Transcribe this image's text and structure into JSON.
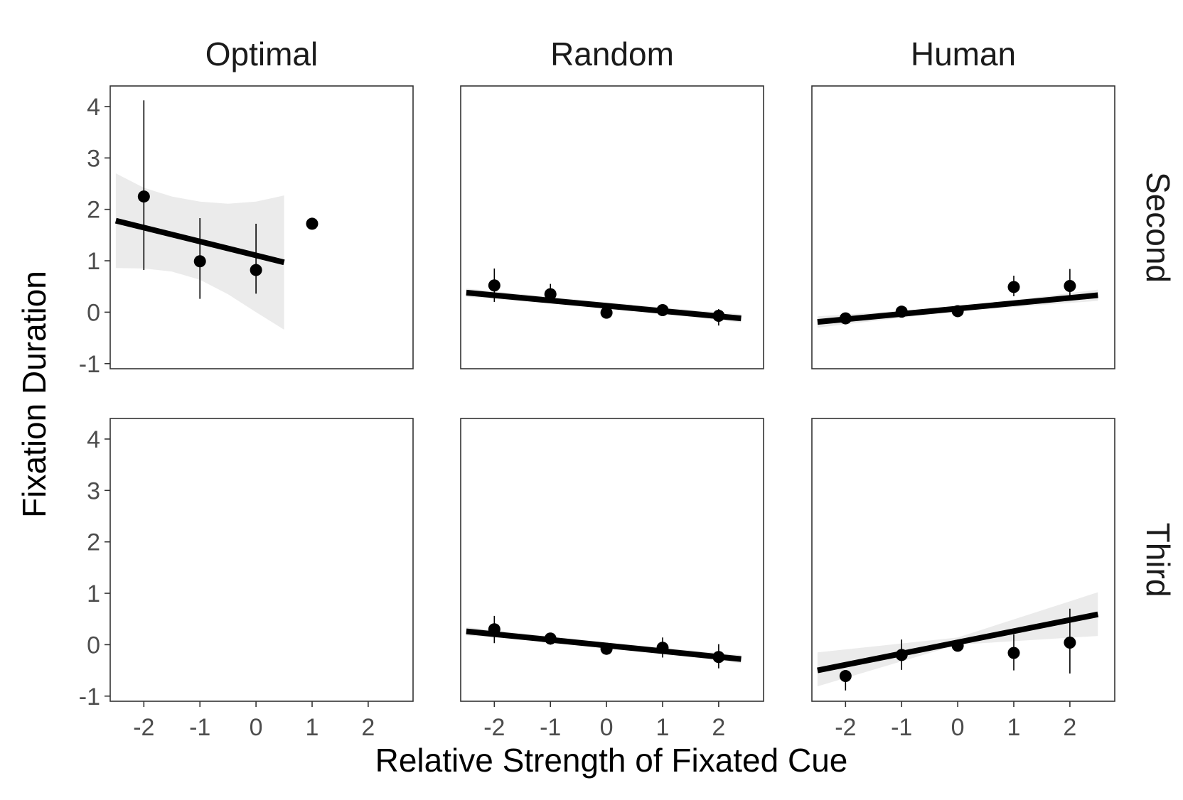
{
  "chart_data": {
    "type": "scatter",
    "xlabel": "Relative Strength of Fixated Cue",
    "ylabel": "Fixation Duration",
    "columns": [
      "Optimal",
      "Random",
      "Human"
    ],
    "rows": [
      "Second",
      "Third"
    ],
    "xlim": [
      -2.6,
      2.8
    ],
    "ylim": [
      -1.1,
      4.4
    ],
    "x_ticks": [
      "-2",
      "-1",
      "0",
      "1",
      "2"
    ],
    "y_ticks": [
      "-1",
      "0",
      "1",
      "2",
      "3",
      "4"
    ],
    "grid": false,
    "panels": [
      {
        "column": "Optimal",
        "row": "Second",
        "points": [
          {
            "x": -2,
            "y": 2.25,
            "lo": 0.82,
            "hi": 4.12
          },
          {
            "x": -1,
            "y": 0.99,
            "lo": 0.26,
            "hi": 1.83
          },
          {
            "x": 0,
            "y": 0.82,
            "lo": 0.36,
            "hi": 1.72
          },
          {
            "x": 1,
            "y": 1.72,
            "lo": null,
            "hi": null
          }
        ],
        "fit": {
          "x": [
            -2.5,
            0.5
          ],
          "y": [
            1.78,
            0.97
          ]
        },
        "band": {
          "x": [
            -2.5,
            -2.0,
            -1.5,
            -1.0,
            -0.5,
            0.0,
            0.5
          ],
          "lo": [
            0.86,
            0.85,
            0.79,
            0.63,
            0.35,
            0.0,
            -0.34
          ],
          "hi": [
            2.7,
            2.42,
            2.25,
            2.15,
            2.11,
            2.15,
            2.27
          ]
        }
      },
      {
        "column": "Random",
        "row": "Second",
        "points": [
          {
            "x": -2,
            "y": 0.52,
            "lo": 0.2,
            "hi": 0.85
          },
          {
            "x": -1,
            "y": 0.35,
            "lo": 0.2,
            "hi": 0.55
          },
          {
            "x": 0,
            "y": -0.01,
            "lo": null,
            "hi": null
          },
          {
            "x": 1,
            "y": 0.04,
            "lo": -0.06,
            "hi": 0.14
          },
          {
            "x": 2,
            "y": -0.07,
            "lo": -0.26,
            "hi": 0.06
          }
        ],
        "fit": {
          "x": [
            -2.5,
            2.4
          ],
          "y": [
            0.38,
            -0.12
          ]
        },
        "band": {
          "x": [
            -2.5,
            0.0,
            2.4
          ],
          "lo": [
            0.3,
            0.09,
            -0.2
          ],
          "hi": [
            0.46,
            0.19,
            -0.04
          ]
        }
      },
      {
        "column": "Human",
        "row": "Second",
        "points": [
          {
            "x": -2,
            "y": -0.12,
            "lo": null,
            "hi": null
          },
          {
            "x": -1,
            "y": 0.01,
            "lo": null,
            "hi": null
          },
          {
            "x": 0,
            "y": 0.02,
            "lo": null,
            "hi": null
          },
          {
            "x": 1,
            "y": 0.49,
            "lo": 0.31,
            "hi": 0.71
          },
          {
            "x": 2,
            "y": 0.51,
            "lo": 0.33,
            "hi": 0.84
          }
        ],
        "fit": {
          "x": [
            -2.5,
            2.5
          ],
          "y": [
            -0.19,
            0.33
          ]
        },
        "band": {
          "x": [
            -2.5,
            0.0,
            2.5
          ],
          "lo": [
            -0.3,
            0.02,
            0.22
          ],
          "hi": [
            -0.08,
            0.1,
            0.44
          ]
        }
      },
      {
        "column": "Optimal",
        "row": "Third",
        "points": [],
        "fit": null,
        "band": null
      },
      {
        "column": "Random",
        "row": "Third",
        "points": [
          {
            "x": -2,
            "y": 0.3,
            "lo": 0.03,
            "hi": 0.56
          },
          {
            "x": -1,
            "y": 0.12,
            "lo": 0.0,
            "hi": 0.22
          },
          {
            "x": 0,
            "y": -0.08,
            "lo": null,
            "hi": null
          },
          {
            "x": 1,
            "y": -0.06,
            "lo": -0.25,
            "hi": 0.14
          },
          {
            "x": 2,
            "y": -0.24,
            "lo": -0.46,
            "hi": 0.01
          }
        ],
        "fit": {
          "x": [
            -2.5,
            2.4
          ],
          "y": [
            0.26,
            -0.28
          ]
        },
        "band": {
          "x": [
            -2.5,
            0.0,
            2.4
          ],
          "lo": [
            0.18,
            -0.04,
            -0.36
          ],
          "hi": [
            0.34,
            0.04,
            -0.2
          ]
        }
      },
      {
        "column": "Human",
        "row": "Third",
        "points": [
          {
            "x": -2,
            "y": -0.61,
            "lo": -0.89,
            "hi": null
          },
          {
            "x": -1,
            "y": -0.2,
            "lo": -0.49,
            "hi": 0.1
          },
          {
            "x": 0,
            "y": -0.02,
            "lo": null,
            "hi": null
          },
          {
            "x": 1,
            "y": -0.16,
            "lo": -0.5,
            "hi": 0.2
          },
          {
            "x": 2,
            "y": 0.04,
            "lo": -0.56,
            "hi": 0.7
          }
        ],
        "fit": {
          "x": [
            -2.5,
            2.5
          ],
          "y": [
            -0.5,
            0.59
          ]
        },
        "band": {
          "x": [
            -2.5,
            0.0,
            2.5
          ],
          "lo": [
            -0.81,
            0.0,
            0.17
          ],
          "hi": [
            -0.15,
            0.14,
            1.02
          ]
        }
      }
    ]
  }
}
